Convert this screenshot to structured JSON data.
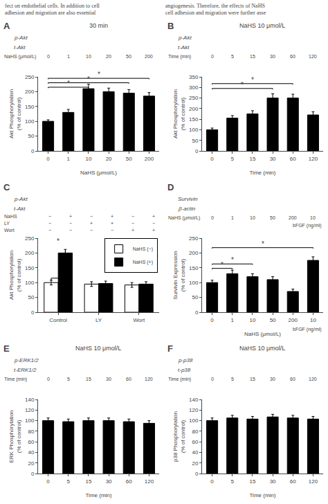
{
  "annotations": [
    "fect on endothelial cells. In addition to cell\nadhesion and migration are also essential",
    "angiogenesis. Therefore, the effects of NaHS\ncell adhesion and migration were further asse"
  ],
  "chart_data": [
    {
      "type": "bar",
      "label": "A",
      "title": "30 min",
      "blot_labels": [
        "p-Akt",
        "t-Akt"
      ],
      "xlabel": "NaHS (μmol/L)",
      "ylabel": "Akt Phosphorylation\n(% of control)",
      "categories": [
        "0",
        "1",
        "10",
        "20",
        "50",
        "200"
      ],
      "values": [
        100,
        130,
        210,
        200,
        195,
        185
      ],
      "errors": [
        5,
        10,
        15,
        12,
        12,
        12
      ],
      "color": "#000000",
      "ylim": [
        0,
        250
      ],
      "yticks": [
        0,
        50,
        100,
        150,
        200,
        250
      ],
      "grid": false,
      "sig_brackets": [
        {
          "x1": 0,
          "x2": 2,
          "y": 215,
          "label": "*"
        },
        {
          "x1": 0,
          "x2": 4,
          "y": 230,
          "label": "*"
        },
        {
          "x1": 0,
          "x2": 5,
          "y": 245,
          "label": "*"
        }
      ]
    },
    {
      "type": "bar",
      "label": "B",
      "title": "NaHS 10 μmol/L",
      "blot_labels": [
        "p-Akt",
        "t-Akt"
      ],
      "xlabel": "Time (min)",
      "ylabel": "Akt Phosphorylation\n(% of control)",
      "categories": [
        "0",
        "5",
        "15",
        "30",
        "60",
        "120"
      ],
      "values": [
        100,
        155,
        175,
        250,
        250,
        170
      ],
      "errors": [
        8,
        12,
        15,
        20,
        18,
        15
      ],
      "color": "#000000",
      "ylim": [
        0,
        350
      ],
      "yticks": [
        0,
        50,
        100,
        150,
        200,
        250,
        300,
        350
      ],
      "grid": false,
      "sig_brackets": [
        {
          "x1": 0,
          "x2": 3,
          "y": 295,
          "label": "*"
        },
        {
          "x1": 0,
          "x2": 4,
          "y": 318,
          "label": "*"
        }
      ]
    },
    {
      "type": "bar",
      "label": "C",
      "blot_labels": [
        "p-Akt",
        "t-Akt"
      ],
      "sign_rows": [
        [
          "NaHS",
          "−",
          "+",
          "−",
          "+",
          "−",
          "+"
        ],
        [
          "LY",
          "−",
          "−",
          "+",
          "+",
          "−",
          "−"
        ],
        [
          "Wort",
          "−",
          "−",
          "−",
          "−",
          "+",
          "+"
        ]
      ],
      "ylabel": "Akt Phosphorylation\n(% of control)",
      "categories": [
        "Control",
        "LY",
        "Wort"
      ],
      "series": [
        {
          "name": "NaHS (−)",
          "color": "white",
          "values": [
            100,
            95,
            92
          ],
          "errors": [
            8,
            8,
            8
          ]
        },
        {
          "name": "NaHS (+)",
          "color": "black",
          "values": [
            200,
            97,
            95
          ],
          "errors": [
            12,
            8,
            8
          ]
        }
      ],
      "color": "#000000",
      "ylim": [
        0,
        250
      ],
      "yticks": [
        0,
        50,
        100,
        150,
        200,
        250
      ],
      "grid": false,
      "legend": "upper right",
      "sig_pairs": [
        {
          "x": 0,
          "y": [
            108,
            115,
            115,
            208
          ],
          "label": "*"
        }
      ]
    },
    {
      "type": "bar",
      "label": "D",
      "blot_labels": [
        "Survivin",
        "β-actin"
      ],
      "xlabel": "NaHS (μmol/L)",
      "xlabel2": "bFGF (ng/ml)",
      "ylabel": "Survivin Expression\n(% of control)",
      "categories": [
        "0",
        "1",
        "10",
        "50",
        "200",
        "10"
      ],
      "values": [
        100,
        130,
        120,
        110,
        70,
        175
      ],
      "errors": [
        8,
        12,
        10,
        10,
        8,
        12
      ],
      "color": "#000000",
      "ylim": [
        0,
        250
      ],
      "yticks": [
        0,
        50,
        100,
        150,
        200,
        250
      ],
      "grid": false,
      "sig_brackets": [
        {
          "x1": 0,
          "x2": 1,
          "y": 148,
          "label": "*"
        },
        {
          "x1": 0,
          "x2": 2,
          "y": 163,
          "label": "*"
        },
        {
          "x1": 0,
          "x2": 5,
          "y": 218,
          "label": "*"
        }
      ]
    },
    {
      "type": "bar",
      "label": "E",
      "title": "NaHS 10 μmol/L",
      "blot_labels": [
        "p-ERK1/2",
        "t-ERK1/2"
      ],
      "xlabel": "Time (min)",
      "ylabel": "ERK Phosphorylation\n(% of control)",
      "categories": [
        "0",
        "5",
        "15",
        "30",
        "60",
        "120"
      ],
      "values": [
        100,
        98,
        100,
        100,
        98,
        95
      ],
      "errors": [
        5,
        5,
        5,
        5,
        5,
        5
      ],
      "color": "#000000",
      "ylim": [
        0,
        140
      ],
      "yticks": [
        0,
        20,
        40,
        60,
        80,
        100,
        120,
        140
      ],
      "grid": false
    },
    {
      "type": "bar",
      "label": "F",
      "title": "NaHS 10 μmol/L",
      "blot_labels": [
        "p-p38",
        "t-p38"
      ],
      "xlabel": "Time (min)",
      "ylabel": "p38 Phosphorylation\n(% of control)",
      "categories": [
        "0",
        "5",
        "15",
        "30",
        "60",
        "120"
      ],
      "values": [
        100,
        105,
        103,
        107,
        105,
        103
      ],
      "errors": [
        5,
        5,
        5,
        5,
        5,
        5
      ],
      "color": "#000000",
      "ylim": [
        0,
        140
      ],
      "yticks": [
        0,
        20,
        40,
        60,
        80,
        100,
        120,
        140
      ],
      "grid": false
    }
  ]
}
